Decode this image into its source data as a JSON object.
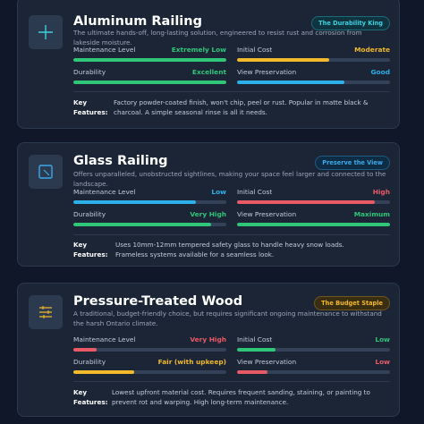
{
  "colors": {
    "green": "#2fc67a",
    "yellow": "#f2b92a",
    "red": "#ea5a66",
    "blue": "#2bb0ea",
    "track": "#334258"
  },
  "cards": [
    {
      "title": "Aluminum Railing",
      "icon": "plus-icon",
      "badge": {
        "label": "The Durability King",
        "bg": "#0f3440",
        "fg": "#3dd0e0",
        "border": "#1e6a78"
      },
      "description": "The ultimate hands-off, long-lasting solution, engineered to resist rust and corrosion from lakeside moisture.",
      "metrics": [
        {
          "label": "Maintenance Level",
          "value": "Extremely Low",
          "color": "#2fc67a",
          "level": 1.0
        },
        {
          "label": "Initial Cost",
          "value": "Moderate",
          "color": "#f2b92a",
          "level": 0.6
        },
        {
          "label": "Durability",
          "value": "Excellent",
          "color": "#2fc67a",
          "level": 1.0
        },
        {
          "label": "View Preservation",
          "value": "Good",
          "color": "#2bb0ea",
          "level": 0.7
        }
      ],
      "key_features_label": "Key Features:",
      "key_features": "Factory powder-coated finish, won't chip, peel or rust. Popular in matte black & charcoal. A simple seasonal rinse is all it needs."
    },
    {
      "title": "Glass Railing",
      "icon": "square-frame-icon",
      "badge": {
        "label": "Preserve the View",
        "bg": "#0e2d45",
        "fg": "#3da8ea",
        "border": "#1f5a80"
      },
      "description": "Offers unparalleled, unobstructed sightlines, making your space feel larger and connected to the landscape.",
      "metrics": [
        {
          "label": "Maintenance Level",
          "value": "Low",
          "color": "#2bb0ea",
          "level": 0.8
        },
        {
          "label": "Initial Cost",
          "value": "High",
          "color": "#ea5a66",
          "level": 0.9
        },
        {
          "label": "Durability",
          "value": "Very High",
          "color": "#2fc67a",
          "level": 0.9
        },
        {
          "label": "View Preservation",
          "value": "Maximum",
          "color": "#2fc67a",
          "level": 1.0
        }
      ],
      "key_features_label": "Key Features:",
      "key_features": "Uses 10mm-12mm tempered safety glass to handle heavy snow loads. Frameless systems available for a seamless look."
    },
    {
      "title": "Pressure-Treated Wood",
      "icon": "wood-planks-icon",
      "badge": {
        "label": "The Budget Staple",
        "bg": "#3a2e12",
        "fg": "#f2b92a",
        "border": "#6e5620"
      },
      "description": "A traditional, budget-friendly choice, but requires significant ongoing maintenance to withstand the harsh Ontario climate.",
      "metrics": [
        {
          "label": "Maintenance Level",
          "value": "Very High",
          "color": "#ea5a66",
          "level": 0.15
        },
        {
          "label": "Initial Cost",
          "value": "Low",
          "color": "#2fc67a",
          "level": 0.25
        },
        {
          "label": "Durability",
          "value": "Fair (with upkeep)",
          "color": "#f2b92a",
          "level": 0.4
        },
        {
          "label": "View Preservation",
          "value": "Low",
          "color": "#ea5a66",
          "level": 0.2
        }
      ],
      "key_features_label": "Key Features:",
      "key_features": "Lowest upfront material cost. Requires frequent sanding, staining, or painting to prevent rot and warping. High long-term maintenance."
    }
  ]
}
